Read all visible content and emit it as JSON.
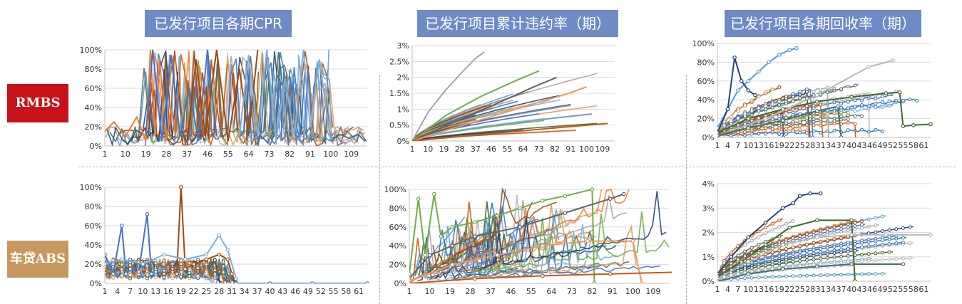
{
  "headers": {
    "col1": "已发行项目各期CPR",
    "col2": "已发行项目累计违约率（期）",
    "col3": "已发行项目各期回收率（期）"
  },
  "rows": {
    "rmbs": "RMBS",
    "car": "车贷ABS"
  },
  "colors": {
    "header_bg": "#6f8ac4",
    "rmbs_bg": "#c8121a",
    "car_bg": "#c7995e",
    "separator": "#9cb2cf"
  },
  "chart_data": [
    {
      "id": "rmbs-cpr",
      "type": "line",
      "title": "已发行项目各期CPR",
      "x_ticks": [
        "1",
        "10",
        "19",
        "28",
        "37",
        "46",
        "55",
        "64",
        "73",
        "82",
        "91",
        "100",
        "109"
      ],
      "xlim": [
        1,
        116
      ],
      "y_ticks": [
        "0%",
        "20%",
        "40%",
        "60%",
        "80%",
        "100%"
      ],
      "ylim": [
        0,
        1
      ],
      "series_count": 40,
      "series": [
        {
          "x": [
            1,
            5,
            10,
            15,
            19,
            21,
            23,
            25,
            28,
            30,
            32
          ],
          "y": [
            0.15,
            0.25,
            0.1,
            0.3,
            0.05,
            1.0,
            0.1,
            0.9,
            0.05,
            0.4,
            0.1
          ]
        },
        {
          "x": [
            19,
            22,
            26,
            30,
            34,
            38,
            42,
            46,
            50
          ],
          "y": [
            0.1,
            1.0,
            0.05,
            0.95,
            0.1,
            0.6,
            0.05,
            1.0,
            0.1
          ]
        },
        {
          "x": [
            37,
            41,
            45,
            50,
            55,
            60,
            64,
            68
          ],
          "y": [
            0.05,
            0.9,
            0.1,
            1.0,
            0.05,
            0.8,
            0.1,
            1.0
          ]
        },
        {
          "x": [
            60,
            64,
            68,
            72,
            76,
            80,
            84,
            88,
            91,
            95,
            100
          ],
          "y": [
            0.1,
            0.95,
            0.1,
            1.0,
            0.05,
            0.7,
            0.1,
            1.0,
            0.2,
            0.9,
            0.05
          ]
        },
        {
          "x": [
            100,
            104,
            108,
            112,
            115
          ],
          "y": [
            0.05,
            0.12,
            0.08,
            0.12,
            0.05
          ]
        }
      ]
    },
    {
      "id": "rmbs-default",
      "type": "line",
      "title": "已发行项目累计违约率（期）",
      "x_ticks": [
        "1",
        "10",
        "19",
        "28",
        "37",
        "46",
        "55",
        "64",
        "73",
        "82",
        "91",
        "100",
        "109"
      ],
      "xlim": [
        1,
        116
      ],
      "y_ticks": [
        "0%",
        "0.5%",
        "1%",
        "1.5%",
        "2%",
        "2.5%",
        "3%"
      ],
      "ylim": [
        0,
        0.03
      ],
      "series_count": 40,
      "series": [
        {
          "x": [
            1,
            10,
            20,
            30,
            37,
            42
          ],
          "y": [
            0,
            0.009,
            0.016,
            0.022,
            0.026,
            0.028
          ]
        },
        {
          "x": [
            1,
            20,
            40,
            60,
            73
          ],
          "y": [
            0,
            0.008,
            0.014,
            0.019,
            0.022
          ]
        },
        {
          "x": [
            1,
            25,
            50,
            70,
            83
          ],
          "y": [
            0,
            0.006,
            0.012,
            0.017,
            0.02
          ]
        },
        {
          "x": [
            1,
            30,
            60,
            90,
            100
          ],
          "y": [
            0,
            0.005,
            0.01,
            0.015,
            0.017
          ]
        },
        {
          "x": [
            1,
            40,
            80,
            112
          ],
          "y": [
            0,
            0.002,
            0.004,
            0.0055
          ]
        }
      ]
    },
    {
      "id": "rmbs-recovery",
      "type": "line",
      "title": "已发行项目各期回收率（期）",
      "x_ticks": [
        "1",
        "4",
        "7",
        "10",
        "13",
        "16",
        "19",
        "22",
        "25",
        "28",
        "31",
        "34",
        "37",
        "40",
        "43",
        "46",
        "49",
        "52",
        "55",
        "58",
        "61"
      ],
      "xlim": [
        1,
        63
      ],
      "y_ticks": [
        "0%",
        "20%",
        "40%",
        "60%",
        "80%",
        "100%"
      ],
      "ylim": [
        0,
        1
      ],
      "series_count": 30,
      "series": [
        {
          "x": [
            1,
            4,
            7,
            10,
            13,
            16,
            19,
            22,
            24
          ],
          "y": [
            0.1,
            0.3,
            0.5,
            0.6,
            0.7,
            0.8,
            0.88,
            0.93,
            0.95
          ]
        },
        {
          "x": [
            1,
            4,
            6,
            8,
            10,
            12
          ],
          "y": [
            0.05,
            0.3,
            0.85,
            0.6,
            0.5,
            0.45
          ]
        },
        {
          "x": [
            1,
            10,
            20,
            30,
            40,
            50,
            54,
            55,
            58,
            63
          ],
          "y": [
            0.05,
            0.2,
            0.3,
            0.38,
            0.43,
            0.47,
            0.48,
            0.12,
            0.13,
            0.14
          ]
        },
        {
          "x": [
            1,
            15,
            30,
            45,
            52
          ],
          "y": [
            0.02,
            0.2,
            0.45,
            0.75,
            0.82
          ]
        },
        {
          "x": [
            1,
            10,
            20,
            30,
            36,
            37
          ],
          "y": [
            0.02,
            0.1,
            0.18,
            0.28,
            0.33,
            0.0
          ]
        }
      ]
    },
    {
      "id": "car-cpr",
      "type": "line",
      "title": "已发行项目各期CPR",
      "x_ticks": [
        "1",
        "4",
        "7",
        "10",
        "13",
        "16",
        "19",
        "22",
        "25",
        "28",
        "31",
        "34",
        "37",
        "40",
        "43",
        "46",
        "49",
        "52",
        "55",
        "58",
        "61"
      ],
      "xlim": [
        1,
        63
      ],
      "y_ticks": [
        "0%",
        "20%",
        "40%",
        "60%",
        "80%",
        "100%"
      ],
      "ylim": [
        0,
        1
      ],
      "series_count": 30,
      "series": [
        {
          "x": [
            1,
            3,
            5,
            6,
            7,
            9,
            11,
            12,
            13,
            15
          ],
          "y": [
            0.3,
            0.1,
            0.6,
            0.1,
            0.15,
            0.12,
            0.72,
            0.1,
            0.12,
            0.1
          ]
        },
        {
          "x": [
            15,
            17,
            18,
            19,
            20,
            22,
            25,
            28,
            30,
            31,
            32
          ],
          "y": [
            0.1,
            0.12,
            0.1,
            1.0,
            0.15,
            0.2,
            0.25,
            0.3,
            0.25,
            0.1,
            0.0
          ]
        },
        {
          "x": [
            1,
            5,
            10,
            15,
            20,
            25,
            28,
            30,
            32
          ],
          "y": [
            0.2,
            0.25,
            0.2,
            0.3,
            0.25,
            0.3,
            0.5,
            0.35,
            0.05
          ]
        },
        {
          "x": [
            32,
            40,
            50,
            63
          ],
          "y": [
            0.0,
            0.0,
            0.0,
            0.0
          ]
        }
      ]
    },
    {
      "id": "car-default",
      "type": "line",
      "title": "已发行项目累计违约率（期）",
      "x_ticks": [
        "1",
        "10",
        "19",
        "28",
        "37",
        "46",
        "55",
        "64",
        "73",
        "82",
        "91",
        "100",
        "109"
      ],
      "xlim": [
        1,
        116
      ],
      "y_ticks": [
        "0%",
        "20%",
        "40%",
        "60%",
        "80%",
        "100%"
      ],
      "ylim": [
        0,
        1
      ],
      "series_count": 40,
      "series": [
        {
          "x": [
            1,
            5,
            8,
            12,
            15,
            20,
            30,
            40,
            50,
            60,
            70,
            82,
            83
          ],
          "y": [
            0.1,
            0.9,
            0.3,
            0.95,
            0.5,
            0.6,
            0.65,
            0.72,
            0.8,
            0.88,
            0.93,
            1.0,
            0.0
          ]
        },
        {
          "x": [
            1,
            10,
            20,
            30,
            50,
            70,
            90,
            96
          ],
          "y": [
            0.05,
            0.3,
            0.4,
            0.5,
            0.6,
            0.75,
            0.9,
            0.95
          ]
        },
        {
          "x": [
            1,
            20,
            40,
            60,
            80,
            100,
            104
          ],
          "y": [
            0.02,
            0.2,
            0.3,
            0.4,
            0.45,
            0.45,
            0.0
          ]
        },
        {
          "x": [
            1,
            30,
            60,
            90,
            120
          ],
          "y": [
            0.0,
            0.05,
            0.08,
            0.1,
            0.12
          ]
        }
      ]
    },
    {
      "id": "car-recovery",
      "type": "line",
      "title": "已发行项目各期回收率（期）",
      "x_ticks": [
        "1",
        "4",
        "7",
        "10",
        "13",
        "16",
        "19",
        "22",
        "25",
        "28",
        "31",
        "34",
        "37",
        "40",
        "43",
        "46",
        "49",
        "52",
        "55",
        "58",
        "61"
      ],
      "xlim": [
        1,
        63
      ],
      "y_ticks": [
        "0%",
        "1%",
        "2%",
        "3%",
        "4%"
      ],
      "ylim": [
        0,
        0.04
      ],
      "series_count": 30,
      "series": [
        {
          "x": [
            1,
            5,
            10,
            15,
            20,
            23,
            25,
            28,
            31
          ],
          "y": [
            0.003,
            0.01,
            0.018,
            0.024,
            0.03,
            0.032,
            0.035,
            0.036,
            0.036
          ]
        },
        {
          "x": [
            1,
            8,
            15,
            22,
            30,
            40,
            41
          ],
          "y": [
            0.002,
            0.008,
            0.015,
            0.022,
            0.025,
            0.025,
            0.0
          ]
        },
        {
          "x": [
            1,
            10,
            20,
            30,
            40,
            50,
            63
          ],
          "y": [
            0.001,
            0.008,
            0.015,
            0.018,
            0.019,
            0.019,
            0.019
          ]
        },
        {
          "x": [
            1,
            10,
            20,
            30,
            40,
            55
          ],
          "y": [
            0.0,
            0.003,
            0.005,
            0.006,
            0.007,
            0.007
          ]
        }
      ]
    }
  ]
}
